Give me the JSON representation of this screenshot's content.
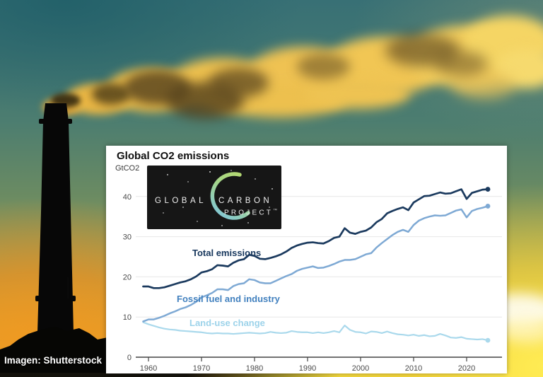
{
  "credit": {
    "text": "Imagen: Shutterstock"
  },
  "logo": {
    "word1": "GLOBAL",
    "word2": "CARBON",
    "word3": "PROJECT",
    "tm": "™",
    "bg_color": "#161616",
    "crescent_top_color": "#b9da6a",
    "crescent_bottom_color": "#7cc5e4",
    "text_color": "#efefef"
  },
  "chart": {
    "title": "Global CO2 emissions",
    "unit": "GtCO2"
  },
  "chart_data": {
    "type": "line",
    "title": "Global CO2 emissions",
    "ylabel": "GtCO2",
    "xlabel": "",
    "grid": true,
    "legend_position": "inline-labels",
    "end_dots": true,
    "x_start": 1959,
    "x_step": 1,
    "x_end": 2024,
    "x_ticks": [
      1960,
      1970,
      1980,
      1990,
      2000,
      2010,
      2020
    ],
    "ylim": [
      0,
      44
    ],
    "y_ticks": [
      0,
      10,
      20,
      30,
      40
    ],
    "axis_color": "#4a4a4a",
    "grid_color": "#e7e7e7",
    "series": [
      {
        "name": "Total emissions",
        "color": "#1b3a5e",
        "label_color": "#16365c",
        "values": [
          17.6,
          17.6,
          17.2,
          17.2,
          17.4,
          17.8,
          18.2,
          18.6,
          18.9,
          19.4,
          20.1,
          21.1,
          21.4,
          21.9,
          22.9,
          22.8,
          22.6,
          23.5,
          24.1,
          24.4,
          25.5,
          25.2,
          24.5,
          24.4,
          24.7,
          25.1,
          25.6,
          26.3,
          27.2,
          27.8,
          28.2,
          28.5,
          28.6,
          28.4,
          28.3,
          28.9,
          29.7,
          30.0,
          32.1,
          31.0,
          30.7,
          31.2,
          31.5,
          32.3,
          33.6,
          34.4,
          35.8,
          36.4,
          36.9,
          37.3,
          36.6,
          38.5,
          39.3,
          40.1,
          40.2,
          40.6,
          41.0,
          40.7,
          40.8,
          41.3,
          41.8,
          39.4,
          40.9,
          41.3,
          41.7,
          41.8
        ]
      },
      {
        "name": "Fossil fuel and industry",
        "color": "#7ea9d4",
        "label_color": "#4180be",
        "values": [
          8.9,
          9.4,
          9.4,
          9.8,
          10.3,
          10.9,
          11.4,
          12.0,
          12.4,
          13.0,
          13.8,
          14.9,
          15.4,
          16.0,
          16.9,
          16.9,
          16.7,
          17.7,
          18.2,
          18.4,
          19.4,
          19.2,
          18.6,
          18.4,
          18.4,
          19.0,
          19.6,
          20.2,
          20.7,
          21.5,
          22.0,
          22.3,
          22.6,
          22.2,
          22.3,
          22.7,
          23.2,
          23.8,
          24.2,
          24.2,
          24.4,
          25.0,
          25.6,
          25.9,
          27.3,
          28.4,
          29.4,
          30.4,
          31.2,
          31.7,
          31.2,
          32.9,
          34.0,
          34.6,
          35.0,
          35.3,
          35.2,
          35.3,
          35.9,
          36.5,
          36.8,
          34.8,
          36.4,
          36.9,
          37.2,
          37.6
        ]
      },
      {
        "name": "Land-use change",
        "color": "#aad9ec",
        "label_color": "#9dd3ea",
        "values": [
          8.7,
          8.2,
          7.8,
          7.4,
          7.1,
          6.9,
          6.8,
          6.6,
          6.5,
          6.4,
          6.3,
          6.2,
          6.0,
          5.9,
          6.0,
          5.9,
          5.9,
          5.8,
          5.9,
          6.0,
          6.1,
          6.0,
          5.9,
          6.0,
          6.3,
          6.1,
          6.0,
          6.1,
          6.5,
          6.3,
          6.2,
          6.2,
          6.0,
          6.2,
          6.0,
          6.2,
          6.5,
          6.2,
          7.9,
          6.8,
          6.3,
          6.2,
          5.9,
          6.4,
          6.3,
          6.0,
          6.4,
          6.0,
          5.7,
          5.6,
          5.4,
          5.6,
          5.3,
          5.5,
          5.2,
          5.3,
          5.8,
          5.4,
          4.9,
          4.8,
          5.0,
          4.6,
          4.5,
          4.4,
          4.5,
          4.2
        ]
      }
    ]
  }
}
